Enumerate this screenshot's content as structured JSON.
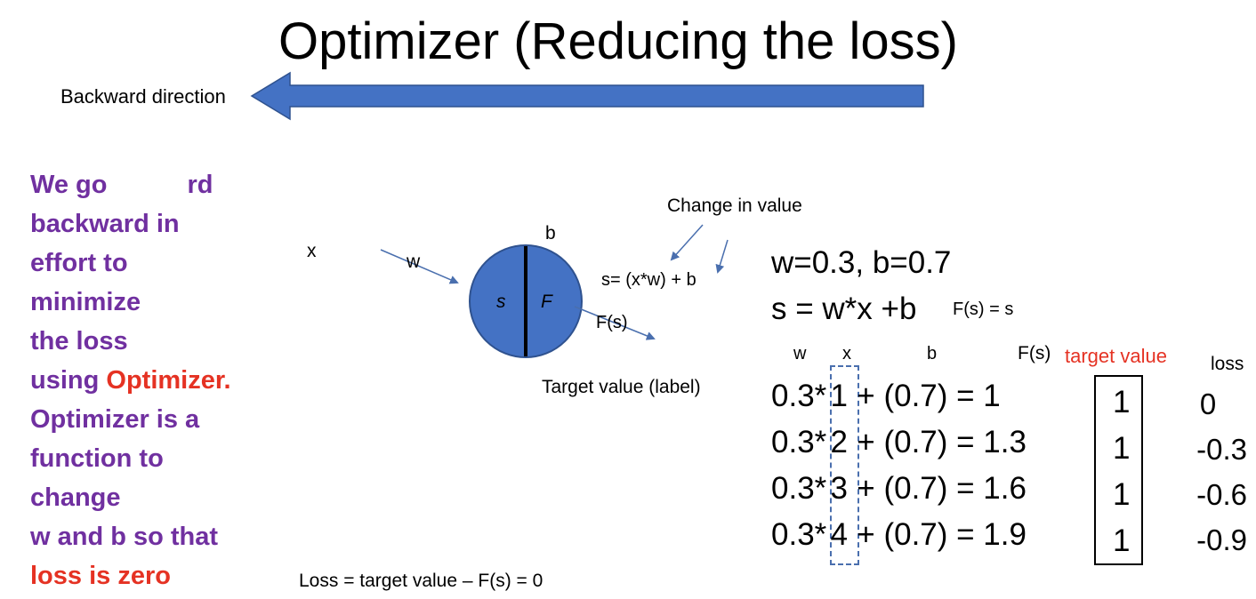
{
  "title": "Optimizer (Reducing the loss)",
  "backward_label": "Backward direction",
  "left_text": {
    "line1": "We go",
    "line1_tail": "rd",
    "line2": "backward in",
    "line3": "effort to",
    "line4": "minimize",
    "line5": "the loss",
    "line6_prefix": "using",
    "line6_red": "Optimizer.",
    "line7": "Optimizer is a",
    "line8": "function to",
    "line9": "change",
    "line10": "w and b so that",
    "line11_red": "loss is zero"
  },
  "neuron": {
    "x_label": "x",
    "w_label": "w",
    "b_label": "b",
    "s_label": "s",
    "f_label": "F",
    "s_formula": "s= (x*w) + b",
    "fs_label": "F(s)",
    "target_label": "Target value (label)",
    "change_label": "Change in value",
    "fill_color": "#4472c4",
    "arrow_color": "#4a6fae"
  },
  "equations": {
    "params": "w=0.3,   b=0.7",
    "s_eq": "s = w*x +b",
    "f_eq": "F(s) =  s"
  },
  "table": {
    "headers": {
      "w": "w",
      "x": "x",
      "b": "b",
      "fs": "F(s)",
      "target": "target value",
      "loss": "loss"
    },
    "rows": [
      {
        "w": "0.3*",
        "x": "1",
        "rest": "+ (0.7) = 1",
        "target": "1",
        "loss": "0"
      },
      {
        "w": "0.3*",
        "x": "2",
        "rest": "+ (0.7) = 1.3",
        "target": "1",
        "loss": "-0.3"
      },
      {
        "w": "0.3*",
        "x": "3",
        "rest": "+ (0.7) = 1.6",
        "target": "1",
        "loss": "-0.6"
      },
      {
        "w": "0.3*",
        "x": "4",
        "rest": "+ (0.7) = 1.9",
        "target": "1",
        "loss": "-0.9"
      }
    ],
    "target_header_color": "#e53223"
  },
  "loss_formula": "Loss = target value – F(s) = 0"
}
